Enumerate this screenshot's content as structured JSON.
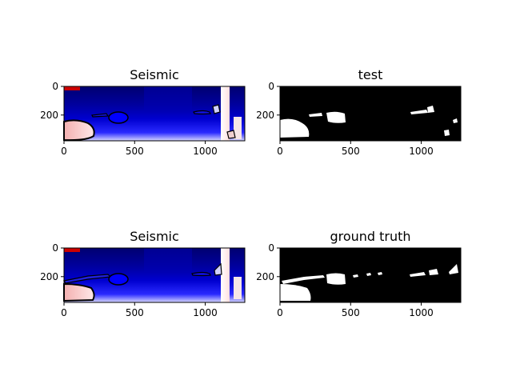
{
  "figure": {
    "colors": {
      "seismic_blue_dark": "#00005a",
      "seismic_blue": "#0000d8",
      "seismic_white": "#ffffff",
      "seismic_red": "#cc0000",
      "mask_black": "#000000",
      "mask_white": "#ffffff"
    }
  },
  "chart_data": [
    {
      "type": "heatmap",
      "title": "Seismic",
      "colormap": "seismic",
      "xlim": [
        0,
        1280
      ],
      "ylim": [
        380,
        0
      ],
      "xticks": [
        "0",
        "500",
        "1000"
      ],
      "yticks": [
        "0",
        "200"
      ],
      "overlay": "mask contour (black)"
    },
    {
      "type": "heatmap",
      "title": "test",
      "colormap": "binary mask",
      "xlim": [
        0,
        1280
      ],
      "ylim": [
        380,
        0
      ],
      "xticks": [
        "0",
        "500",
        "1000"
      ],
      "yticks": [
        "0",
        "200"
      ]
    },
    {
      "type": "heatmap",
      "title": "Seismic",
      "colormap": "seismic",
      "xlim": [
        0,
        1280
      ],
      "ylim": [
        380,
        0
      ],
      "xticks": [
        "0",
        "500",
        "1000"
      ],
      "yticks": [
        "0",
        "200"
      ],
      "overlay": "mask contour (black)"
    },
    {
      "type": "heatmap",
      "title": "ground truth",
      "colormap": "binary mask",
      "xlim": [
        0,
        1280
      ],
      "ylim": [
        380,
        0
      ],
      "xticks": [
        "0",
        "500",
        "1000"
      ],
      "yticks": [
        "0",
        "200"
      ]
    }
  ]
}
